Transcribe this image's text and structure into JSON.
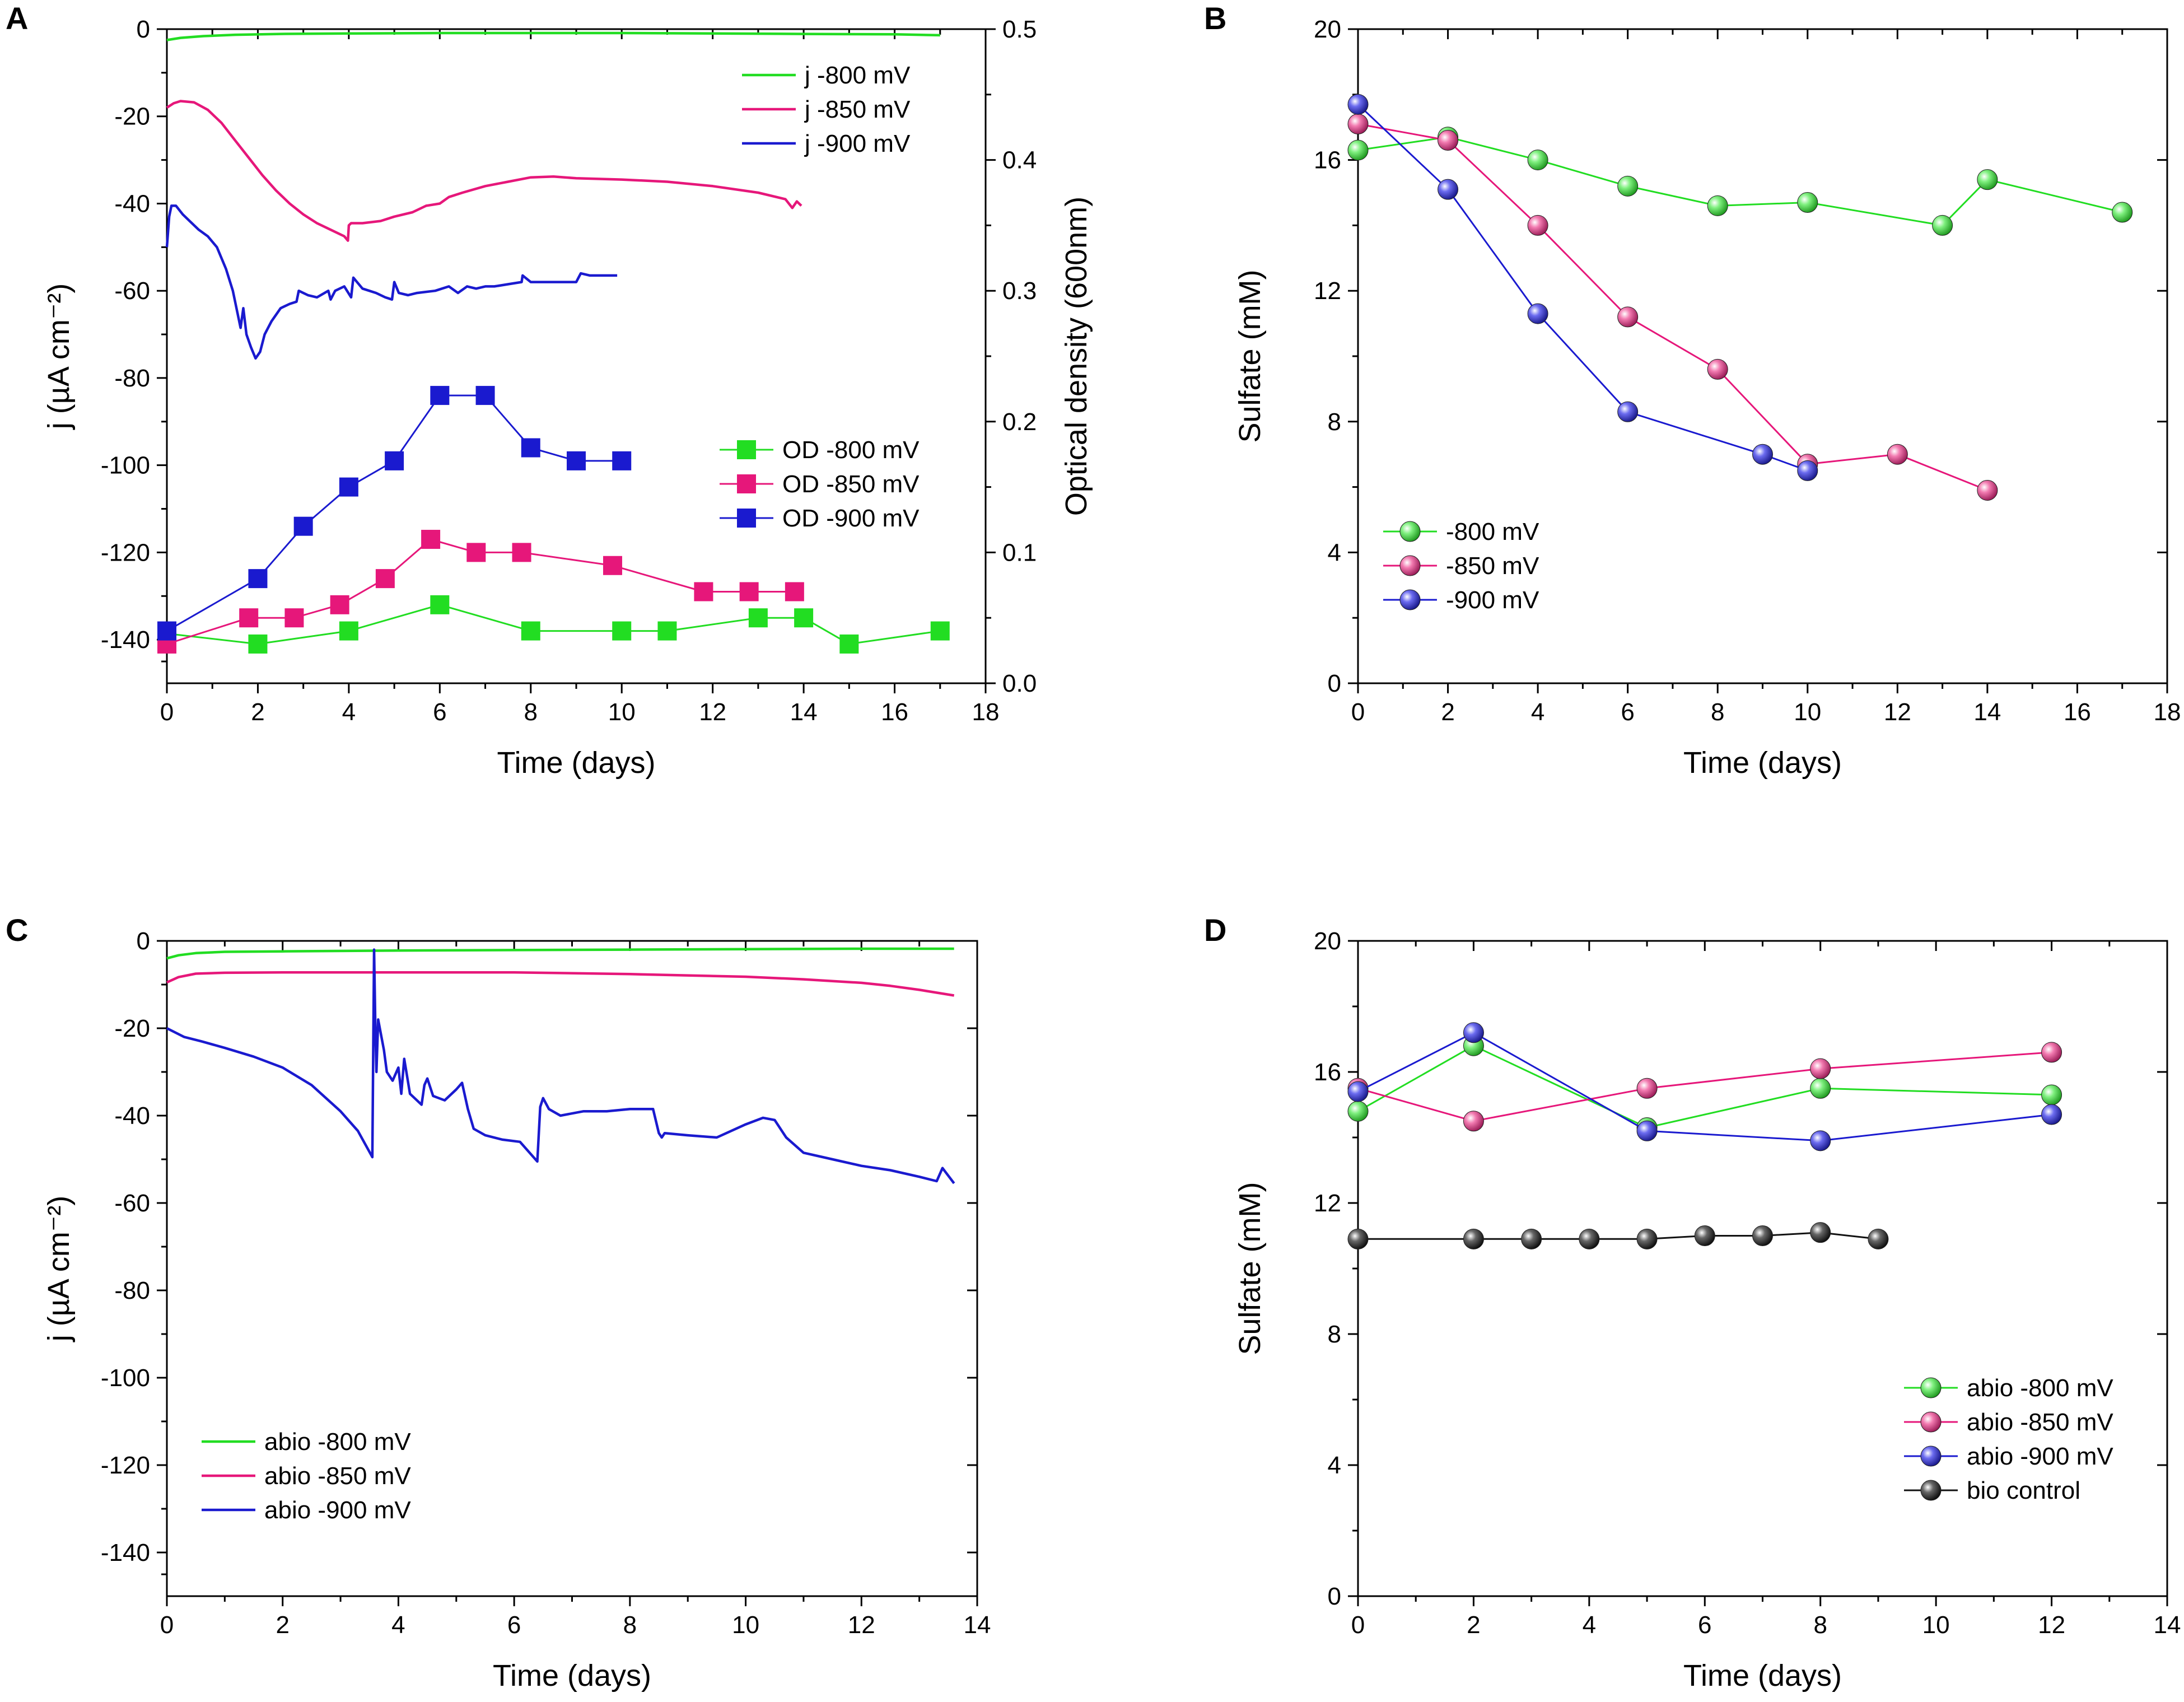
{
  "panels": {
    "A": {
      "label": "A"
    },
    "B": {
      "label": "B"
    },
    "C": {
      "label": "C"
    },
    "D": {
      "label": "D"
    }
  },
  "chart_data": [
    {
      "id": "A",
      "type": "line",
      "panel_label": "A",
      "xlabel": "Time (days)",
      "ylabel": "j (µA cm⁻²)",
      "y2label": "Optical density (600nm)",
      "xlim": [
        0,
        18
      ],
      "ylim": [
        -150,
        0
      ],
      "y2lim": [
        0,
        0.5
      ],
      "xticks": [
        0,
        2,
        4,
        6,
        8,
        10,
        12,
        14,
        16,
        18
      ],
      "yticks": [
        0,
        -20,
        -40,
        -60,
        -80,
        -100,
        -120,
        -140
      ],
      "y2ticks": [
        0.0,
        0.1,
        0.2,
        0.3,
        0.4,
        0.5
      ],
      "series": [
        {
          "name": "j -800 mV",
          "color": "#22dd22",
          "marker": "none",
          "axis": "left",
          "x": [
            0,
            0.3,
            0.8,
            1.5,
            2.5,
            4,
            6,
            8,
            10,
            12,
            14,
            16,
            17
          ],
          "y": [
            -2.5,
            -2.0,
            -1.6,
            -1.3,
            -1.1,
            -1.0,
            -0.9,
            -0.9,
            -0.9,
            -1.0,
            -1.1,
            -1.2,
            -1.4
          ]
        },
        {
          "name": "j -850 mV",
          "color": "#e6177a",
          "marker": "none",
          "axis": "left",
          "x": [
            0,
            0.15,
            0.3,
            0.6,
            0.9,
            1.2,
            1.5,
            1.8,
            2.1,
            2.4,
            2.7,
            3.0,
            3.3,
            3.6,
            3.9,
            3.98,
            4.0,
            4.05,
            4.3,
            4.7,
            5.0,
            5.4,
            5.7,
            6.0,
            6.2,
            6.5,
            7.0,
            7.5,
            8.0,
            8.5,
            9.0,
            10.0,
            11.0,
            12.0,
            13.0,
            13.6,
            13.75,
            13.85,
            13.95
          ],
          "y": [
            -18,
            -17,
            -16.5,
            -16.8,
            -18.5,
            -21.5,
            -25.5,
            -29.5,
            -33.5,
            -37,
            -40,
            -42.5,
            -44.5,
            -46,
            -47.5,
            -48.5,
            -45,
            -44.5,
            -44.5,
            -44,
            -43,
            -42,
            -40.5,
            -40,
            -38.5,
            -37.5,
            -36,
            -35,
            -34,
            -33.8,
            -34.2,
            -34.5,
            -35,
            -36,
            -37.5,
            -39,
            -41,
            -39.5,
            -40.5
          ]
        },
        {
          "name": "j -900 mV",
          "color": "#1a1acf",
          "marker": "none",
          "axis": "left",
          "x": [
            0,
            0.05,
            0.1,
            0.2,
            0.35,
            0.5,
            0.7,
            0.9,
            1.1,
            1.3,
            1.45,
            1.55,
            1.62,
            1.68,
            1.75,
            1.85,
            1.95,
            2.05,
            2.15,
            2.3,
            2.5,
            2.7,
            2.85,
            2.9,
            3.1,
            3.3,
            3.55,
            3.6,
            3.7,
            3.9,
            4.05,
            4.1,
            4.3,
            4.45,
            4.6,
            4.8,
            4.95,
            5.0,
            5.1,
            5.3,
            5.5,
            5.9,
            6.2,
            6.4,
            6.6,
            6.8,
            7.0,
            7.2,
            7.5,
            7.8,
            7.82,
            8.0,
            8.5,
            9.0,
            9.1,
            9.3,
            9.6,
            9.9
          ],
          "y": [
            -50,
            -43,
            -40.5,
            -40.5,
            -42.5,
            -44,
            -46,
            -47.5,
            -50,
            -55,
            -60,
            -65,
            -68.5,
            -64,
            -70,
            -73,
            -75.5,
            -74,
            -70,
            -67,
            -64,
            -63,
            -62.5,
            -60,
            -61,
            -61.5,
            -60,
            -62,
            -60,
            -59,
            -61.5,
            -57,
            -59.5,
            -60,
            -60.5,
            -61.5,
            -62,
            -58,
            -60.5,
            -61,
            -60.5,
            -60,
            -59,
            -60.5,
            -59,
            -59.5,
            -59,
            -59,
            -58.5,
            -58,
            -56.5,
            -58,
            -58,
            -58,
            -56,
            -56.5,
            -56.5,
            -56.5
          ]
        },
        {
          "name": "OD -800 mV",
          "color": "#22dd22",
          "marker": "square",
          "axis": "right",
          "x": [
            0,
            2,
            4,
            6,
            8,
            10,
            11,
            13,
            14,
            15,
            17
          ],
          "y": [
            0.038,
            0.03,
            0.04,
            0.06,
            0.04,
            0.04,
            0.04,
            0.05,
            0.05,
            0.03,
            0.04
          ]
        },
        {
          "name": "OD -850 mV",
          "color": "#e6177a",
          "marker": "square",
          "axis": "right",
          "x": [
            0,
            1.8,
            2.8,
            3.8,
            4.8,
            5.8,
            6.8,
            7.8,
            9.8,
            11.8,
            12.8,
            13.8
          ],
          "y": [
            0.03,
            0.05,
            0.05,
            0.06,
            0.08,
            0.11,
            0.1,
            0.1,
            0.09,
            0.07,
            0.07,
            0.07
          ]
        },
        {
          "name": "OD -900 mV",
          "color": "#1a1acf",
          "marker": "square",
          "axis": "right",
          "x": [
            0,
            2,
            3,
            4,
            5,
            6,
            7,
            8,
            9,
            10
          ],
          "y": [
            0.04,
            0.08,
            0.12,
            0.15,
            0.17,
            0.22,
            0.22,
            0.18,
            0.17,
            0.17
          ]
        }
      ],
      "legends": [
        {
          "placement": "top-right",
          "entries": [
            "j -800 mV",
            "j -850 mV",
            "j -900 mV"
          ]
        },
        {
          "placement": "middle-right",
          "entries": [
            "OD -800 mV",
            "OD -850 mV",
            "OD -900 mV"
          ]
        }
      ]
    },
    {
      "id": "B",
      "type": "line",
      "panel_label": "B",
      "xlabel": "Time (days)",
      "ylabel": "Sulfate (mM)",
      "xlim": [
        0,
        18
      ],
      "ylim": [
        0,
        20
      ],
      "xticks": [
        0,
        2,
        4,
        6,
        8,
        10,
        12,
        14,
        16,
        18
      ],
      "yticks": [
        0,
        4,
        8,
        12,
        16,
        20
      ],
      "series": [
        {
          "name": "-800 mV",
          "color": "#22dd22",
          "marker": "sphere",
          "x": [
            0,
            2,
            4,
            6,
            8,
            10,
            13,
            14,
            17
          ],
          "y": [
            16.3,
            16.7,
            16.0,
            15.2,
            14.6,
            14.7,
            14.0,
            15.4,
            14.4
          ]
        },
        {
          "name": "-850 mV",
          "color": "#e6177a",
          "marker": "sphere",
          "x": [
            0,
            2,
            4,
            6,
            8,
            10,
            12,
            14
          ],
          "y": [
            17.1,
            16.6,
            14.0,
            11.2,
            9.6,
            6.7,
            7.0,
            5.9
          ]
        },
        {
          "name": "-900 mV",
          "color": "#1a1acf",
          "marker": "sphere",
          "x": [
            0,
            2,
            4,
            6,
            9,
            10
          ],
          "y": [
            17.7,
            15.1,
            11.3,
            8.3,
            7.0,
            6.5
          ]
        }
      ],
      "legends": [
        {
          "placement": "bottom-left",
          "entries": [
            "-800 mV",
            "-850 mV",
            "-900 mV"
          ]
        }
      ]
    },
    {
      "id": "C",
      "type": "line",
      "panel_label": "C",
      "xlabel": "Time (days)",
      "ylabel": "j (µA cm⁻²)",
      "xlim": [
        0,
        14
      ],
      "ylim": [
        -150,
        0
      ],
      "xticks": [
        0,
        2,
        4,
        6,
        8,
        10,
        12,
        14
      ],
      "yticks": [
        0,
        -20,
        -40,
        -60,
        -80,
        -100,
        -120,
        -140
      ],
      "series": [
        {
          "name": "abio -800 mV",
          "color": "#22dd22",
          "marker": "none",
          "x": [
            0,
            0.2,
            0.5,
            1,
            2,
            4,
            6,
            8,
            10,
            12,
            13.6
          ],
          "y": [
            -4,
            -3.3,
            -2.8,
            -2.5,
            -2.4,
            -2.2,
            -2.1,
            -2.0,
            -1.9,
            -1.8,
            -1.8
          ]
        },
        {
          "name": "abio -850 mV",
          "color": "#e6177a",
          "marker": "none",
          "x": [
            0,
            0.2,
            0.5,
            1,
            2,
            4,
            6,
            8,
            10,
            11,
            12,
            12.5,
            13,
            13.6
          ],
          "y": [
            -9.5,
            -8.3,
            -7.5,
            -7.3,
            -7.2,
            -7.2,
            -7.2,
            -7.6,
            -8.2,
            -8.8,
            -9.6,
            -10.3,
            -11.2,
            -12.5
          ]
        },
        {
          "name": "abio -900 mV",
          "color": "#1a1acf",
          "marker": "none",
          "x": [
            0,
            0.3,
            0.6,
            1.0,
            1.5,
            2.0,
            2.5,
            3.0,
            3.3,
            3.55,
            3.58,
            3.6,
            3.62,
            3.65,
            3.75,
            3.8,
            3.9,
            4.0,
            4.05,
            4.1,
            4.2,
            4.4,
            4.45,
            4.5,
            4.6,
            4.7,
            4.8,
            5.0,
            5.1,
            5.2,
            5.3,
            5.5,
            5.8,
            6.1,
            6.4,
            6.45,
            6.5,
            6.6,
            6.8,
            7.2,
            7.6,
            8.0,
            8.4,
            8.5,
            8.55,
            8.6,
            9.0,
            9.5,
            10.0,
            10.3,
            10.5,
            10.7,
            11.0,
            11.5,
            12.0,
            12.5,
            13.0,
            13.3,
            13.4,
            13.6
          ],
          "y": [
            -20,
            -22,
            -23,
            -24.5,
            -26.5,
            -29,
            -33,
            -39,
            -43.5,
            -49.5,
            -2,
            -18.5,
            -30,
            -18,
            -25,
            -30,
            -32,
            -29,
            -35,
            -27,
            -35,
            -37.5,
            -33,
            -31.5,
            -35.5,
            -36,
            -36.5,
            -34,
            -32.5,
            -38.5,
            -43,
            -44.5,
            -45.5,
            -46,
            -50.5,
            -38,
            -36,
            -38.5,
            -40,
            -39,
            -39,
            -38.5,
            -38.5,
            -44,
            -45,
            -44,
            -44.5,
            -45,
            -42,
            -40.5,
            -41,
            -45,
            -48.5,
            -50,
            -51.5,
            -52.5,
            -54,
            -55,
            -52,
            -55.5
          ]
        }
      ],
      "legends": [
        {
          "placement": "bottom-left",
          "entries": [
            "abio -800 mV",
            "abio -850 mV",
            "abio -900 mV"
          ]
        }
      ]
    },
    {
      "id": "D",
      "type": "line",
      "panel_label": "D",
      "xlabel": "Time (days)",
      "ylabel": "Sulfate (mM)",
      "xlim": [
        0,
        14
      ],
      "ylim": [
        0,
        20
      ],
      "xticks": [
        0,
        2,
        4,
        6,
        8,
        10,
        12,
        14
      ],
      "yticks": [
        0,
        4,
        8,
        12,
        16,
        20
      ],
      "series": [
        {
          "name": "abio -800 mV",
          "color": "#22dd22",
          "marker": "sphere",
          "x": [
            0,
            2,
            5,
            8,
            12
          ],
          "y": [
            14.8,
            16.8,
            14.3,
            15.5,
            15.3
          ]
        },
        {
          "name": "abio -850 mV",
          "color": "#e6177a",
          "marker": "sphere",
          "x": [
            0,
            2,
            5,
            8,
            12
          ],
          "y": [
            15.5,
            14.5,
            15.5,
            16.1,
            16.6
          ]
        },
        {
          "name": "abio -900 mV",
          "color": "#1a1acf",
          "marker": "sphere",
          "x": [
            0,
            2,
            5,
            8,
            12
          ],
          "y": [
            15.4,
            17.2,
            14.2,
            13.9,
            14.7
          ]
        },
        {
          "name": "bio control",
          "color": "#111111",
          "marker": "sphere",
          "x": [
            0,
            2,
            3,
            4,
            5,
            6,
            7,
            8,
            9
          ],
          "y": [
            10.9,
            10.9,
            10.9,
            10.9,
            10.9,
            11.0,
            11.0,
            11.1,
            10.9
          ]
        }
      ],
      "legends": [
        {
          "placement": "bottom-right",
          "entries": [
            "abio -800 mV",
            "abio -850 mV",
            "abio -900 mV",
            "bio control"
          ]
        }
      ]
    }
  ]
}
